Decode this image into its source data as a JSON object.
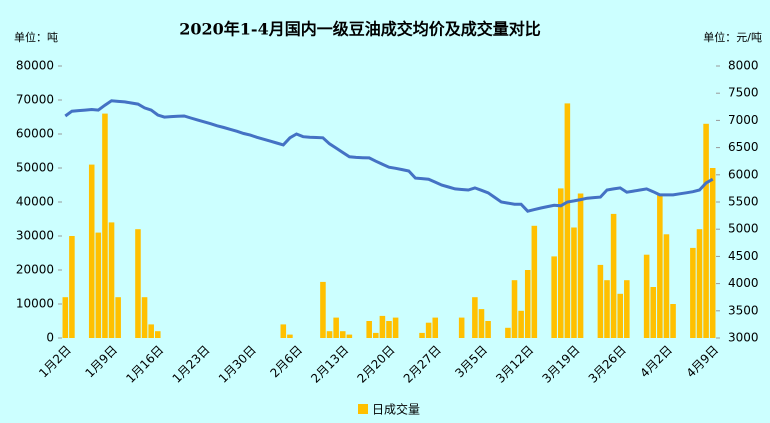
{
  "chart_data": {
    "type": "bar_line",
    "title": "2020年1-4月国内一级豆油成交均价及成交量对比",
    "y_unit": "单位：吨",
    "y2_unit": "单位：元/吨",
    "categories": [
      "1月2日",
      null,
      null,
      null,
      null,
      null,
      null,
      "1月9日",
      null,
      null,
      null,
      null,
      null,
      null,
      "1月16日",
      null,
      null,
      null,
      null,
      null,
      null,
      "1月23日",
      null,
      null,
      null,
      null,
      null,
      null,
      "1月30日",
      null,
      null,
      null,
      null,
      null,
      null,
      "2月6日",
      null,
      null,
      null,
      null,
      null,
      null,
      "2月13日",
      null,
      null,
      null,
      null,
      null,
      null,
      "2月20日",
      null,
      null,
      null,
      null,
      null,
      null,
      "2月27日",
      null,
      null,
      null,
      null,
      null,
      null,
      "3月5日",
      null,
      null,
      null,
      null,
      null,
      null,
      "3月12日",
      null,
      null,
      null,
      null,
      null,
      null,
      "3月19日",
      null,
      null,
      null,
      null,
      null,
      null,
      "3月26日",
      null,
      null,
      null,
      null,
      null,
      null,
      "4月2日",
      null,
      null,
      null,
      null,
      null,
      null,
      "4月9日"
    ],
    "series": [
      {
        "name": "日成交量",
        "type": "bar",
        "color": "#ffc000",
        "values": [
          12000,
          30000,
          null,
          null,
          51000,
          31000,
          66000,
          34000,
          12000,
          null,
          null,
          32000,
          12000,
          4000,
          2000,
          null,
          null,
          null,
          null,
          null,
          null,
          null,
          null,
          null,
          null,
          null,
          null,
          null,
          null,
          null,
          null,
          null,
          null,
          4000,
          1000,
          null,
          null,
          null,
          null,
          16500,
          2000,
          6000,
          2000,
          1000,
          null,
          null,
          5000,
          1500,
          6500,
          5000,
          6000,
          null,
          null,
          null,
          1500,
          4500,
          6000,
          null,
          null,
          null,
          6000,
          null,
          12000,
          8500,
          5000,
          null,
          null,
          3000,
          17000,
          8000,
          20000,
          33000,
          null,
          null,
          24000,
          44000,
          69000,
          32500,
          42500,
          null,
          null,
          21500,
          17000,
          36500,
          13000,
          17000,
          null,
          null,
          24500,
          15000,
          42500,
          30500,
          10000,
          null,
          null,
          26500,
          32000,
          63000,
          50000
        ]
      },
      {
        "type": "line",
        "axis": "y2",
        "color": "#4472c4",
        "values": [
          7080,
          7170,
          7180,
          7190,
          7200,
          7190,
          7280,
          7360,
          7350,
          7340,
          7320,
          7300,
          7230,
          7190,
          7100,
          7060,
          7070,
          7075,
          7080,
          7045,
          7010,
          6975,
          6940,
          6900,
          6870,
          6835,
          6800,
          6760,
          6730,
          6690,
          6655,
          6620,
          6585,
          6550,
          6680,
          6750,
          6700,
          6690,
          6685,
          6680,
          6570,
          6490,
          6410,
          6330,
          6320,
          6315,
          6310,
          6250,
          6195,
          6140,
          6120,
          6095,
          6070,
          5940,
          5930,
          5920,
          5865,
          5810,
          5775,
          5740,
          5730,
          5720,
          5760,
          5715,
          5670,
          5585,
          5500,
          5480,
          5460,
          5460,
          5330,
          5360,
          5390,
          5415,
          5440,
          5430,
          5500,
          5520,
          5545,
          5570,
          5580,
          5590,
          5720,
          5740,
          5760,
          5680,
          5700,
          5720,
          5740,
          5690,
          5630,
          5630,
          5630,
          5650,
          5670,
          5690,
          5720,
          5850,
          5920
        ]
      }
    ],
    "ylim": [
      0,
      80000
    ],
    "yticks": [
      0,
      10000,
      20000,
      30000,
      40000,
      50000,
      60000,
      70000,
      80000
    ],
    "y2lim": [
      3000,
      8000
    ],
    "y2ticks": [
      3000,
      3500,
      4000,
      4500,
      5000,
      5500,
      6000,
      6500,
      7000,
      7500,
      8000
    ],
    "legend": "bottom"
  }
}
